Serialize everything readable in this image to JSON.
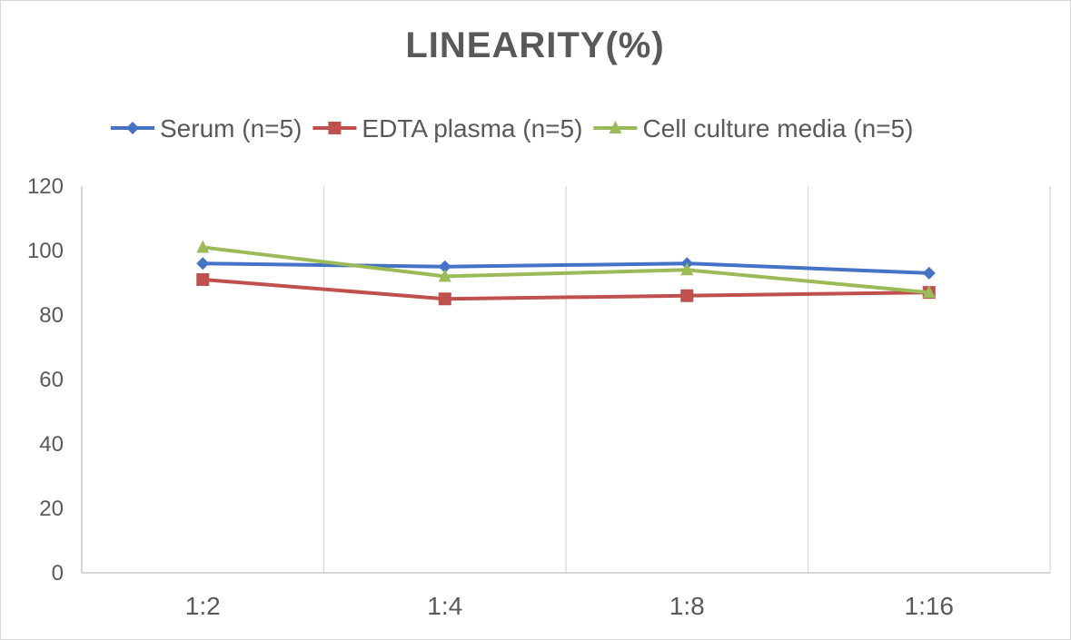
{
  "chart_data": {
    "type": "line",
    "title": "LINEARITY(%)",
    "categories": [
      "1:2",
      "1:4",
      "1:8",
      "1:16"
    ],
    "series": [
      {
        "name": "Serum (n=5)",
        "values": [
          96,
          95,
          96,
          93
        ],
        "color": "#4472c4",
        "marker": "diamond"
      },
      {
        "name": "EDTA plasma (n=5)",
        "values": [
          91,
          85,
          86,
          87
        ],
        "color": "#c0504d",
        "marker": "square"
      },
      {
        "name": "Cell culture media (n=5)",
        "values": [
          101,
          92,
          94,
          87
        ],
        "color": "#9bbb59",
        "marker": "triangle"
      }
    ],
    "ylim": [
      0,
      120
    ],
    "yticks": [
      0,
      20,
      40,
      60,
      80,
      100,
      120
    ],
    "xlabel": "",
    "ylabel": "",
    "grid": "vertical",
    "legend": "top"
  }
}
